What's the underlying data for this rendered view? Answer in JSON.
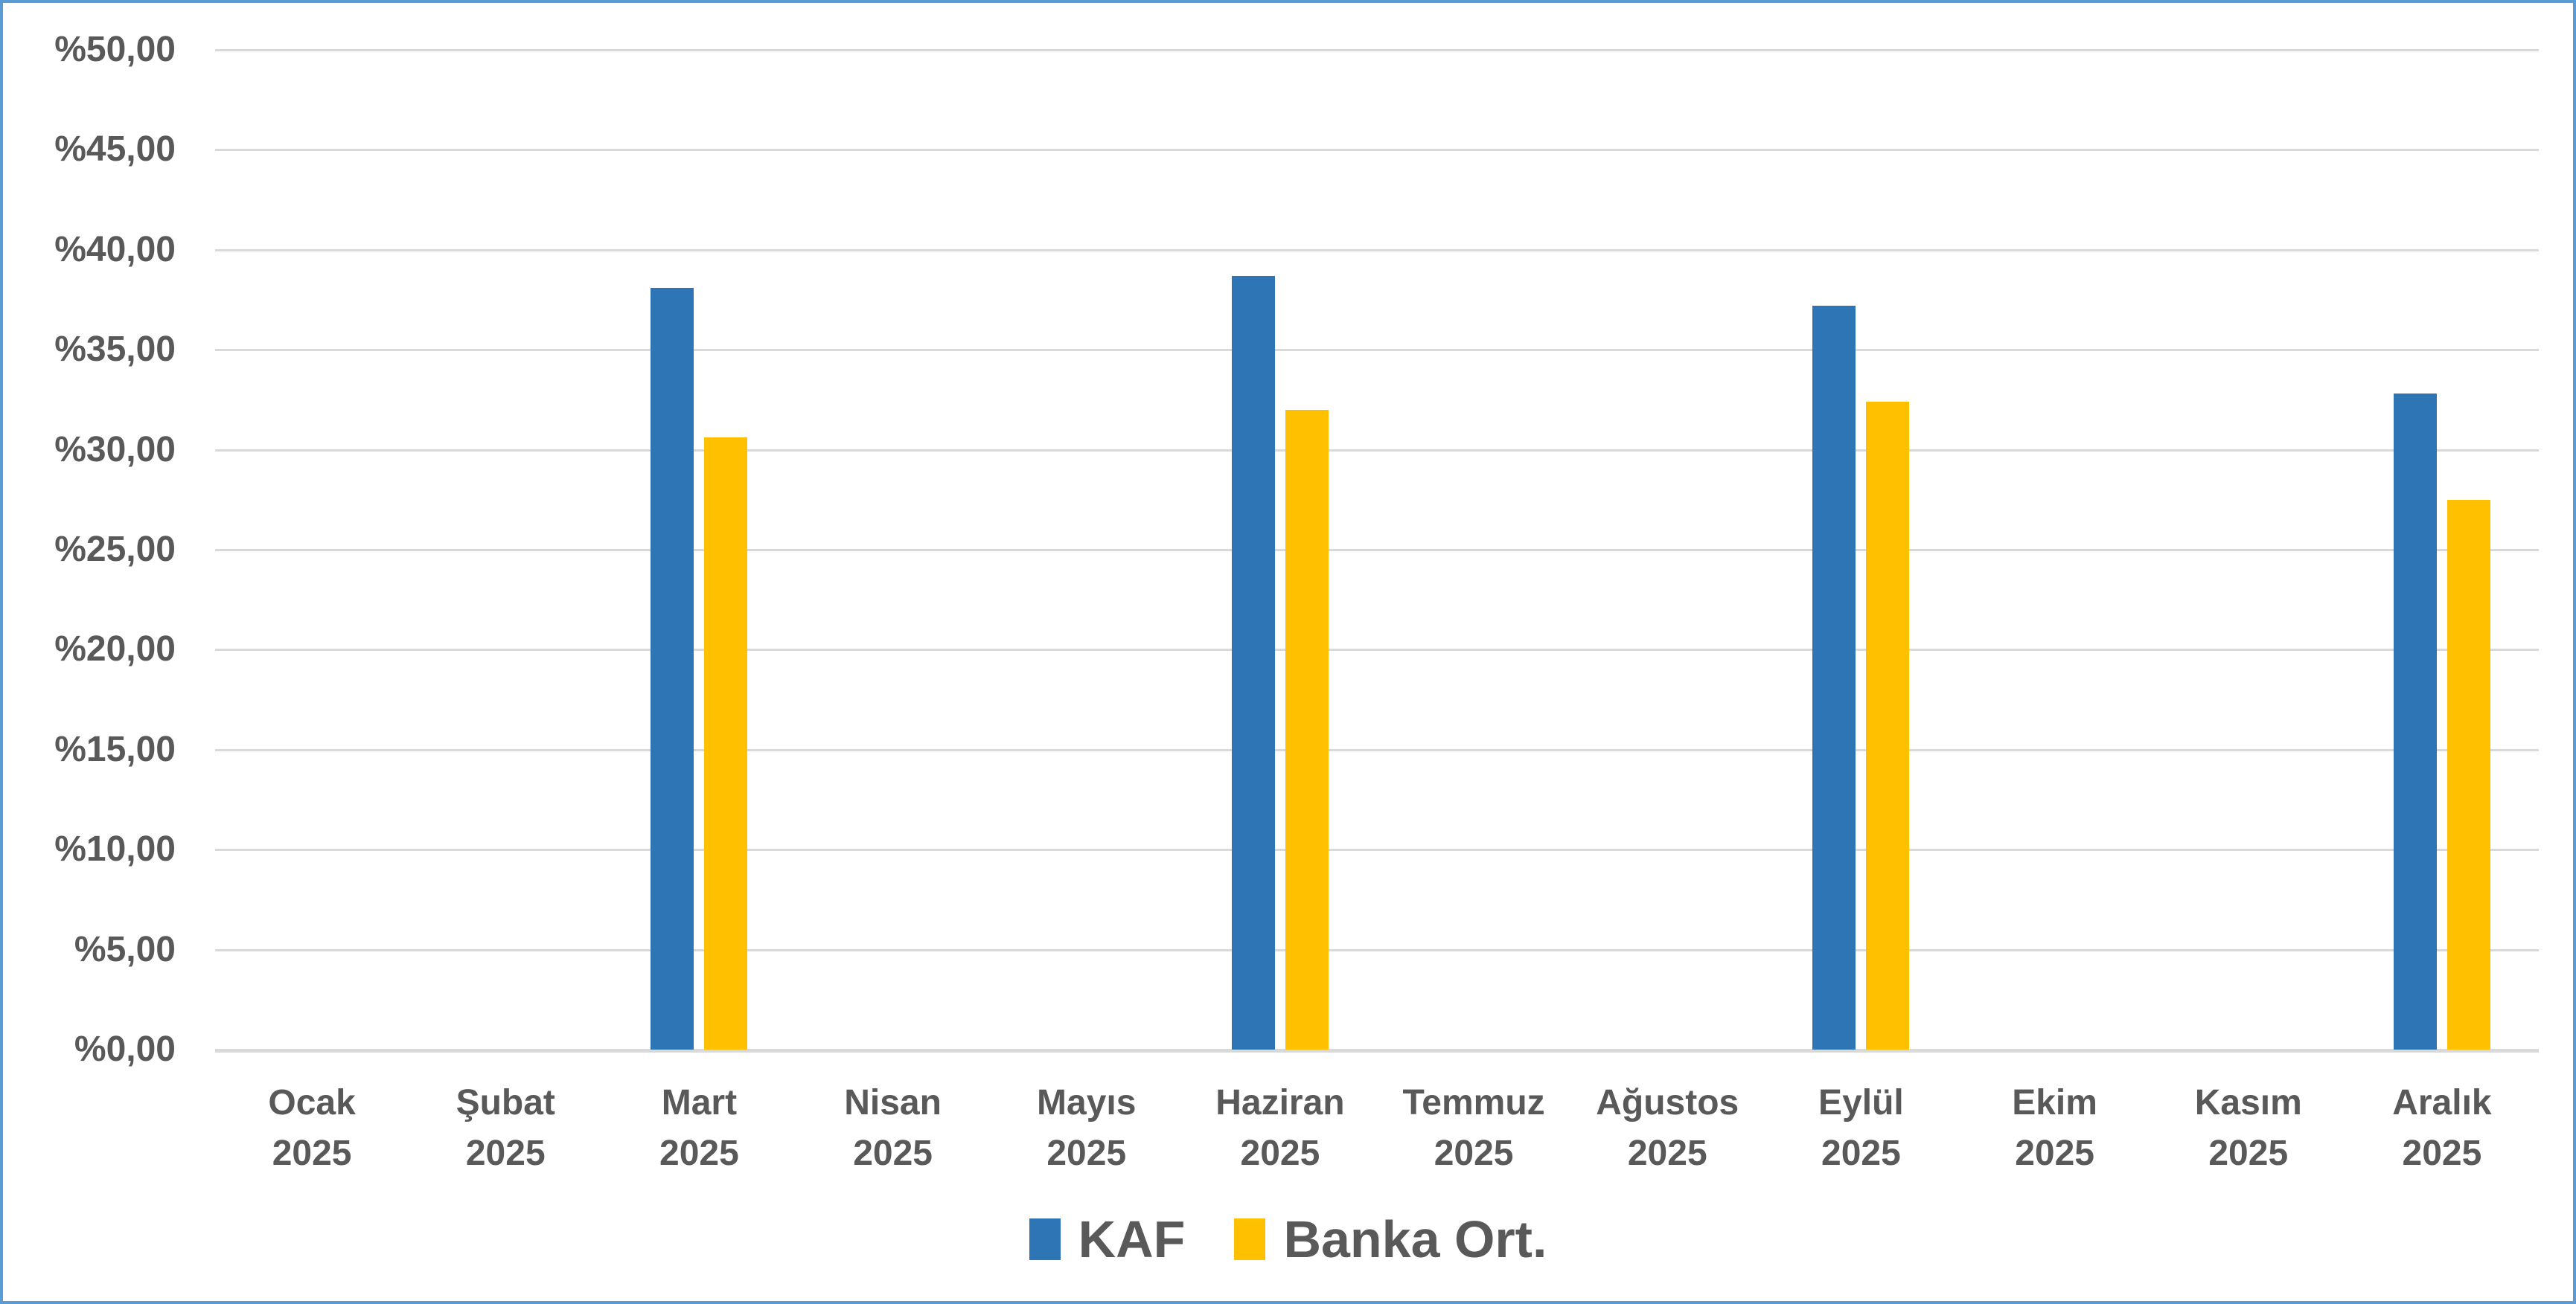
{
  "chart_data": {
    "type": "bar",
    "title": "",
    "categories": [
      {
        "month": "Ocak",
        "year": "2025"
      },
      {
        "month": "Şubat",
        "year": "2025"
      },
      {
        "month": "Mart",
        "year": "2025"
      },
      {
        "month": "Nisan",
        "year": "2025"
      },
      {
        "month": "Mayıs",
        "year": "2025"
      },
      {
        "month": "Haziran",
        "year": "2025"
      },
      {
        "month": "Temmuz",
        "year": "2025"
      },
      {
        "month": "Ağustos",
        "year": "2025"
      },
      {
        "month": "Eylül",
        "year": "2025"
      },
      {
        "month": "Ekim",
        "year": "2025"
      },
      {
        "month": "Kasım",
        "year": "2025"
      },
      {
        "month": "Aralık",
        "year": "2025"
      }
    ],
    "series": [
      {
        "name": "KAF",
        "color": "#2E75B6",
        "values": [
          null,
          null,
          38.1,
          null,
          null,
          38.7,
          null,
          null,
          37.2,
          null,
          null,
          32.8
        ]
      },
      {
        "name": "Banka Ort.",
        "color": "#FFC000",
        "values": [
          null,
          null,
          30.6,
          null,
          null,
          32.0,
          null,
          null,
          32.4,
          null,
          null,
          27.5
        ]
      }
    ],
    "y_axis": {
      "min": 0,
      "max": 50,
      "step": 5,
      "tick_labels": [
        "%50,00",
        "%45,00",
        "%40,00",
        "%35,00",
        "%30,00",
        "%25,00",
        "%20,00",
        "%15,00",
        "%10,00",
        "%5,00",
        "%0,00"
      ]
    },
    "grid": true,
    "legend_position": "bottom"
  },
  "colors": {
    "kaf_bar": "#2E75B6",
    "banka_ort_bar": "#FFC000",
    "label_text": "#595959",
    "gridline": "#D9D9D9",
    "frame_border": "#5B9BD5",
    "background": "#FFFFFF"
  }
}
